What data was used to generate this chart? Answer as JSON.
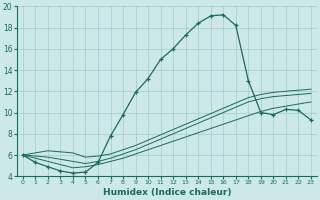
{
  "xlabel": "Humidex (Indice chaleur)",
  "bg_color": "#cce8e8",
  "grid_color": "#aacece",
  "line_color": "#1a6b5a",
  "x_values": [
    0,
    1,
    2,
    3,
    4,
    5,
    6,
    7,
    8,
    9,
    10,
    11,
    12,
    13,
    14,
    15,
    16,
    17,
    18,
    19,
    20,
    21,
    22,
    23
  ],
  "main_curve": [
    6.0,
    5.3,
    4.9,
    4.5,
    4.3,
    4.4,
    5.3,
    7.8,
    9.8,
    11.9,
    13.2,
    15.0,
    16.0,
    17.3,
    18.4,
    19.1,
    19.2,
    18.2,
    13.0,
    10.0,
    9.8,
    10.3,
    10.2,
    9.3
  ],
  "line1": [
    6.0,
    5.7,
    5.4,
    5.1,
    4.8,
    4.9,
    5.1,
    5.4,
    5.7,
    6.1,
    6.5,
    6.9,
    7.3,
    7.7,
    8.1,
    8.5,
    8.9,
    9.3,
    9.7,
    10.1,
    10.4,
    10.6,
    10.8,
    11.0
  ],
  "line2": [
    6.0,
    5.9,
    5.8,
    5.6,
    5.4,
    5.2,
    5.4,
    5.7,
    6.1,
    6.5,
    7.0,
    7.5,
    8.0,
    8.5,
    9.0,
    9.5,
    10.0,
    10.5,
    11.0,
    11.3,
    11.5,
    11.6,
    11.7,
    11.8
  ],
  "line3": [
    6.0,
    6.2,
    6.4,
    6.3,
    6.2,
    5.8,
    5.9,
    6.1,
    6.5,
    6.9,
    7.4,
    7.9,
    8.4,
    8.9,
    9.4,
    9.9,
    10.4,
    10.9,
    11.4,
    11.7,
    11.9,
    12.0,
    12.1,
    12.2
  ],
  "ylim": [
    4,
    20
  ],
  "yticks": [
    4,
    6,
    8,
    10,
    12,
    14,
    16,
    18,
    20
  ],
  "xlim": [
    -0.5,
    23.5
  ],
  "xticks": [
    0,
    1,
    2,
    3,
    4,
    5,
    6,
    7,
    8,
    9,
    10,
    11,
    12,
    13,
    14,
    15,
    16,
    17,
    18,
    19,
    20,
    21,
    22,
    23
  ]
}
